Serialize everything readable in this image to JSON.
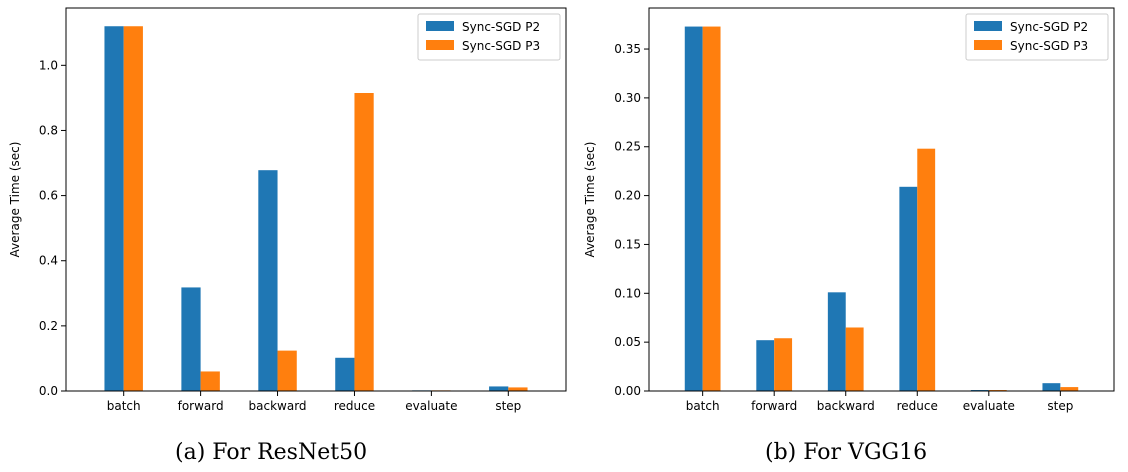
{
  "chart_data": [
    {
      "type": "bar",
      "caption": "(a) For ResNet50",
      "categories": [
        "batch",
        "forward",
        "backward",
        "reduce",
        "evaluate",
        "step"
      ],
      "series": [
        {
          "name": "Sync-SGD P2",
          "color": "#1f77b4",
          "values": [
            1.12,
            0.318,
            0.678,
            0.102,
            0.002,
            0.014
          ]
        },
        {
          "name": "Sync-SGD P3",
          "color": "#ff7f0e",
          "values": [
            1.12,
            0.06,
            0.124,
            0.915,
            0.002,
            0.011
          ]
        }
      ],
      "ylabel": "Average Time (sec)",
      "ylim": [
        0,
        1.176
      ],
      "yticks": [
        0.0,
        0.2,
        0.4,
        0.6,
        0.8,
        1.0
      ],
      "ytick_labels": [
        "0.0",
        "0.2",
        "0.4",
        "0.6",
        "0.8",
        "1.0"
      ],
      "legend": "top-right",
      "grid": false
    },
    {
      "type": "bar",
      "caption": "(b) For VGG16",
      "categories": [
        "batch",
        "forward",
        "backward",
        "reduce",
        "evaluate",
        "step"
      ],
      "series": [
        {
          "name": "Sync-SGD P2",
          "color": "#1f77b4",
          "values": [
            0.373,
            0.052,
            0.101,
            0.209,
            0.001,
            0.008
          ]
        },
        {
          "name": "Sync-SGD P3",
          "color": "#ff7f0e",
          "values": [
            0.373,
            0.054,
            0.065,
            0.248,
            0.001,
            0.004
          ]
        }
      ],
      "ylabel": "Average Time (sec)",
      "ylim": [
        0,
        0.392
      ],
      "yticks": [
        0.0,
        0.05,
        0.1,
        0.15,
        0.2,
        0.25,
        0.3,
        0.35
      ],
      "ytick_labels": [
        "0.00",
        "0.05",
        "0.10",
        "0.15",
        "0.20",
        "0.25",
        "0.30",
        "0.35"
      ],
      "legend": "top-right",
      "grid": false
    }
  ]
}
